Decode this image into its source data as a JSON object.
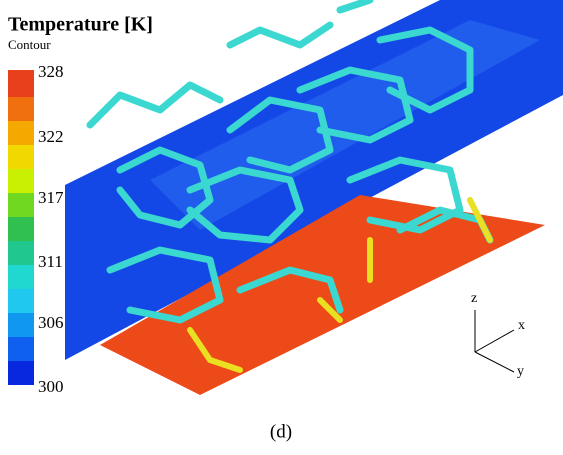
{
  "legend": {
    "title": "Temperature [K]",
    "subtitle": "Contour",
    "ticks": [
      328,
      322,
      317,
      311,
      306,
      300
    ]
  },
  "axes": {
    "z": "z",
    "x": "x",
    "y": "y"
  },
  "caption": "(d)"
}
